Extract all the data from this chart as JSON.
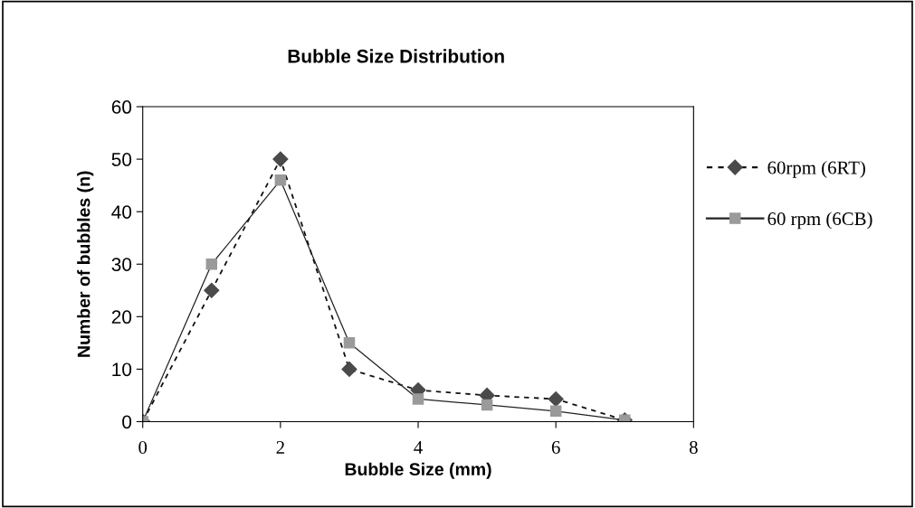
{
  "chart_data": {
    "type": "line",
    "title": "Bubble Size Distribution",
    "xlabel": "Bubble Size (mm)",
    "ylabel": "Number of bubbles (n)",
    "x": [
      0,
      1,
      2,
      3,
      4,
      5,
      6,
      7
    ],
    "series": [
      {
        "name": "60rpm (6RT)",
        "color": "#4a4a4a",
        "marker": "diamond",
        "line_style": "dashed",
        "values": [
          0,
          25,
          50,
          10,
          6,
          5,
          4.3,
          0.3
        ]
      },
      {
        "name": "60 rpm (6CB)",
        "color": "#9a9a9a",
        "marker": "square",
        "line_style": "solid",
        "values": [
          0,
          30,
          46,
          15,
          4.3,
          3.2,
          2,
          0.3
        ]
      }
    ],
    "xlim": [
      0,
      8
    ],
    "xticks": [
      0,
      2,
      4,
      6,
      8
    ],
    "ylim": [
      0,
      60
    ],
    "yticks": [
      0,
      10,
      20,
      30,
      40,
      50,
      60
    ],
    "grid": false,
    "legend": "right"
  }
}
